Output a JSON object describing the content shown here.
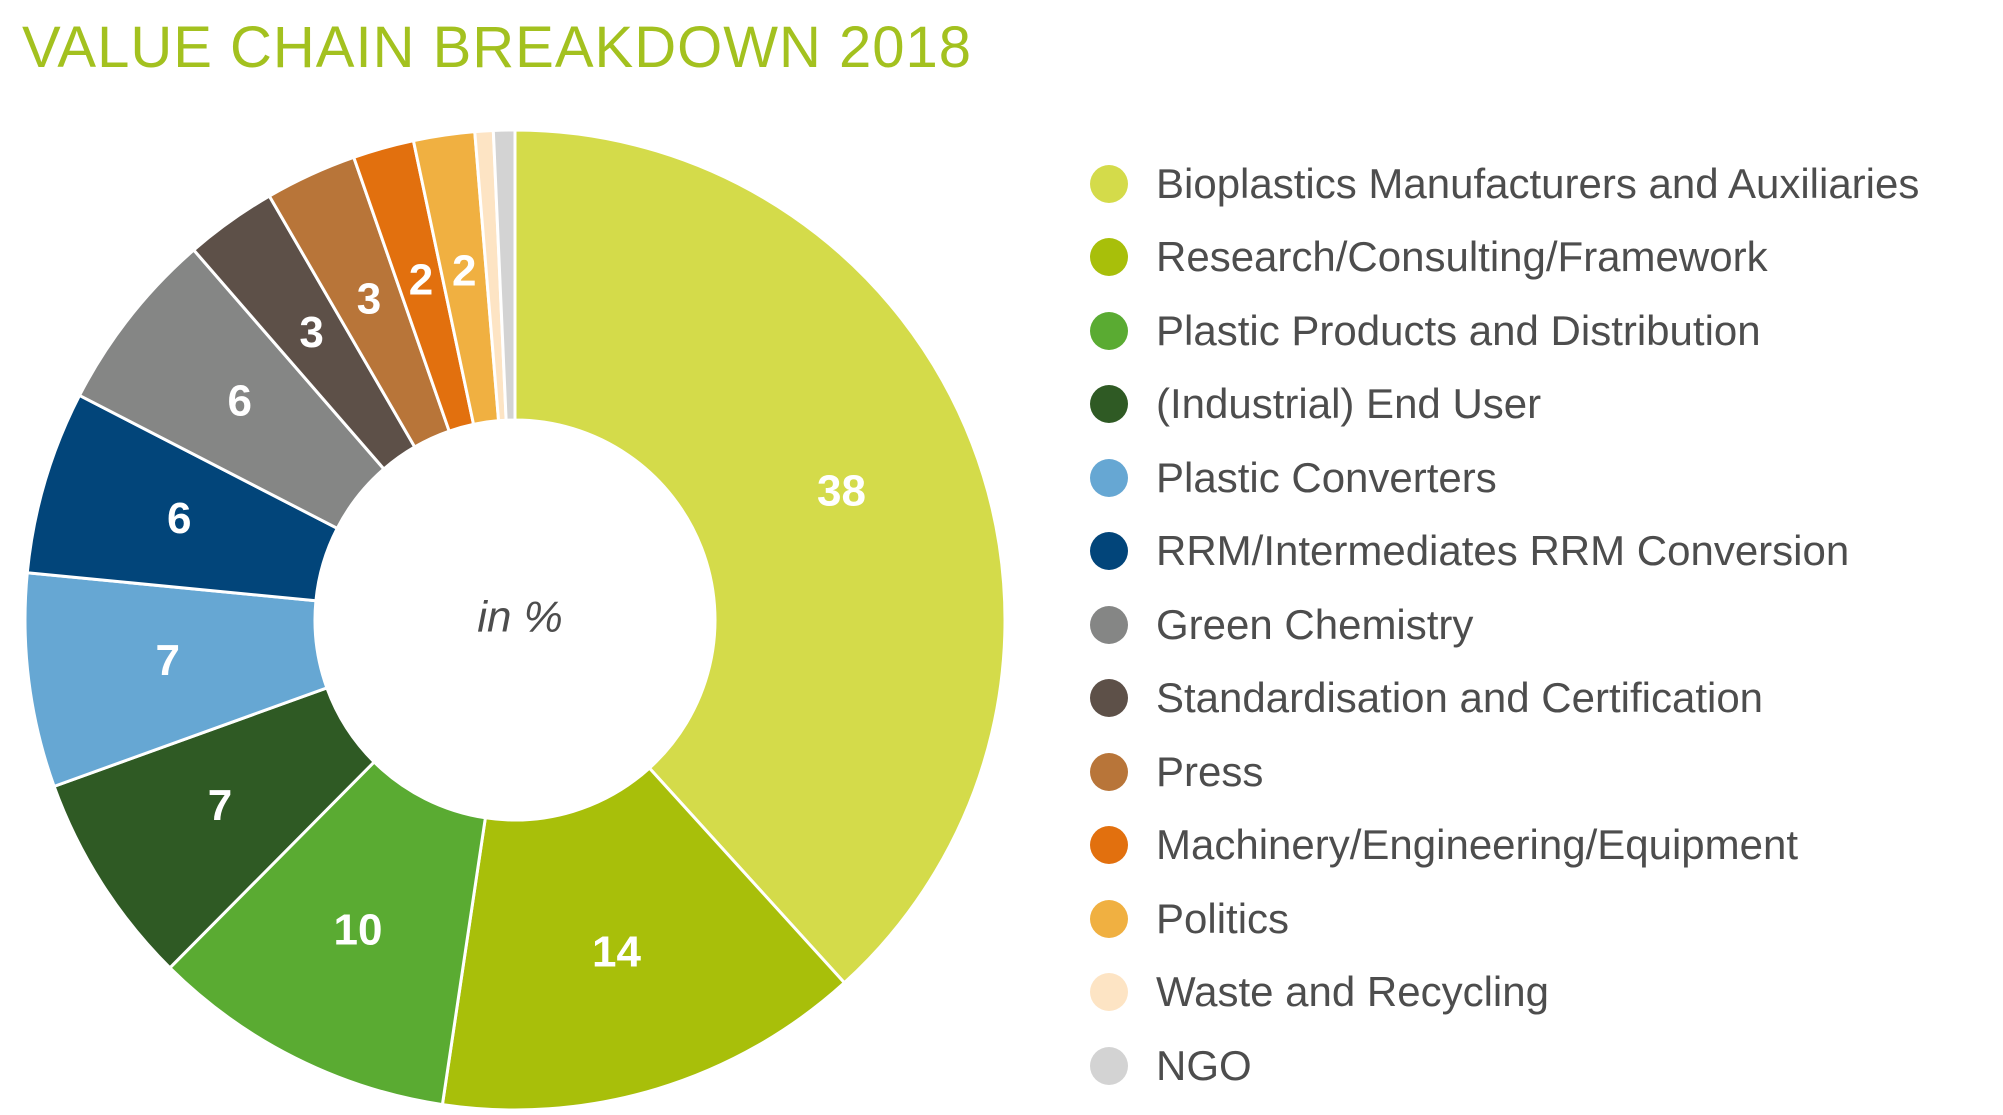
{
  "title": "VALUE CHAIN BREAKDOWN 2018",
  "title_color": "#a3c11f",
  "chart_data": {
    "type": "pie",
    "variant": "donut",
    "title": "VALUE CHAIN BREAKDOWN 2018",
    "center_label": "in %",
    "legend_position": "right",
    "slices": [
      {
        "label": "Bioplastics Manufacturers and Auxiliaries",
        "value": 38,
        "value_label": "38",
        "color": "#d4db4a"
      },
      {
        "label": "Research/Consulting/Framework",
        "value": 14,
        "value_label": "14",
        "color": "#a8bf0a"
      },
      {
        "label": "Plastic Products and Distribution",
        "value": 10,
        "value_label": "10",
        "color": "#5aab32"
      },
      {
        "label": "(Industrial) End User",
        "value": 7,
        "value_label": "7",
        "color": "#2f5a24"
      },
      {
        "label": "Plastic Converters",
        "value": 7,
        "value_label": "7",
        "color": "#66a7d3"
      },
      {
        "label": "RRM/Intermediates RRM Conversion",
        "value": 6,
        "value_label": "6",
        "color": "#02457a"
      },
      {
        "label": "Green Chemistry",
        "value": 6,
        "value_label": "6",
        "color": "#858685"
      },
      {
        "label": "Standardisation and Certification",
        "value": 3,
        "value_label": "3",
        "color": "#5d5048"
      },
      {
        "label": "Press",
        "value": 3,
        "value_label": "3",
        "color": "#b87539"
      },
      {
        "label": "Machinery/Engineering/Equipment",
        "value": 2,
        "value_label": "2",
        "color": "#e2700e"
      },
      {
        "label": "Politics",
        "value": 2,
        "value_label": "2",
        "color": "#f0b041"
      },
      {
        "label": "Waste and Recycling",
        "value": 0.6,
        "value_label": "",
        "color": "#fde4c4"
      },
      {
        "label": "NGO",
        "value": 0.7,
        "value_label": "",
        "color": "#d3d3d3"
      }
    ]
  }
}
